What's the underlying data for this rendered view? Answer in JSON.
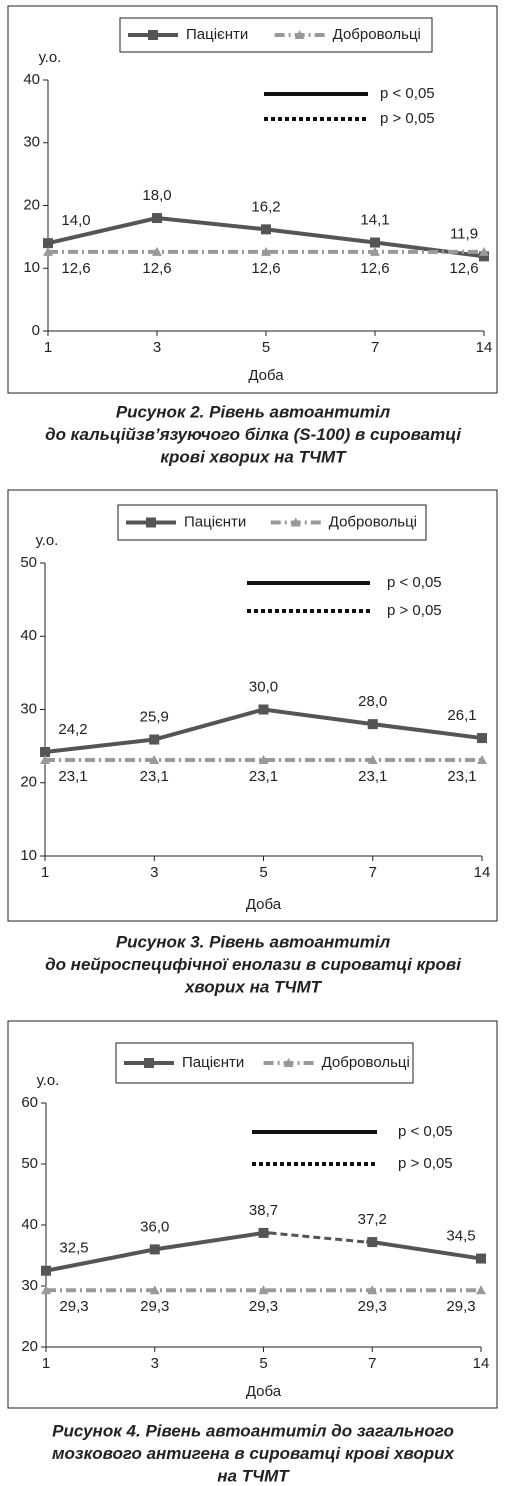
{
  "chart_data": [
    {
      "type": "line",
      "caption": [
        "Рисунок 2.  Рівень автоантитіл",
        "до кальційзв’язуючого білка (S-100) в сироватці",
        "крові хворих на ТЧМТ"
      ],
      "ylabel": "у.о.",
      "xlabel": "Доба",
      "categories": [
        "1",
        "3",
        "5",
        "7",
        "14"
      ],
      "series": [
        {
          "name": "Пацієнти",
          "color": "#555555",
          "values": [
            14.0,
            18.0,
            16.2,
            14.1,
            11.9
          ],
          "value_labels": [
            "14,0",
            "18,0",
            "16,2",
            "14,1",
            "11,9"
          ]
        },
        {
          "name": "Добровольці",
          "color": "#999999",
          "values": [
            12.6,
            12.6,
            12.6,
            12.6,
            12.6
          ],
          "value_labels": [
            "12,6",
            "12,6",
            "12,6",
            "12,6",
            "12,6"
          ]
        }
      ],
      "ylim": [
        0,
        40
      ],
      "yticks": [
        0,
        10,
        20,
        30,
        40
      ],
      "annotations": [
        {
          "text": "p < 0,05",
          "style": "solid"
        },
        {
          "text": "p > 0,05",
          "style": "dotted"
        }
      ]
    },
    {
      "type": "line",
      "caption": [
        "Рисунок 3.  Рівень автоантитіл",
        "до нейроспецифічної енолази в сироватці крові",
        "хворих на ТЧМТ"
      ],
      "ylabel": "у.о.",
      "xlabel": "Доба",
      "categories": [
        "1",
        "3",
        "5",
        "7",
        "14"
      ],
      "series": [
        {
          "name": "Пацієнти",
          "color": "#555555",
          "values": [
            24.2,
            25.9,
            30.0,
            28.0,
            26.1
          ],
          "value_labels": [
            "24,2",
            "25,9",
            "30,0",
            "28,0",
            "26,1"
          ]
        },
        {
          "name": "Добровольці",
          "color": "#999999",
          "values": [
            23.1,
            23.1,
            23.1,
            23.1,
            23.1
          ],
          "value_labels": [
            "23,1",
            "23,1",
            "23,1",
            "23,1",
            "23,1"
          ]
        }
      ],
      "ylim": [
        10,
        50
      ],
      "yticks": [
        10,
        20,
        30,
        40,
        50
      ],
      "annotations": [
        {
          "text": "p < 0,05",
          "style": "solid"
        },
        {
          "text": "p > 0,05",
          "style": "dotted"
        }
      ]
    },
    {
      "type": "line",
      "caption": [
        "Рисунок 4.  Рівень автоантитіл до загального",
        "мозкового антигена в сироватці крові хворих",
        "на ТЧМТ"
      ],
      "ylabel": "у.о.",
      "xlabel": "Доба",
      "categories": [
        "1",
        "3",
        "5",
        "7",
        "14"
      ],
      "series": [
        {
          "name": "Пацієнти",
          "color": "#555555",
          "values": [
            32.5,
            36.0,
            38.7,
            37.2,
            34.5
          ],
          "value_labels": [
            "32,5",
            "36,0",
            "38,7",
            "37,2",
            "34,5"
          ],
          "segment_styles": [
            "solid",
            "solid",
            "dotted",
            "solid"
          ]
        },
        {
          "name": "Добровольці",
          "color": "#999999",
          "values": [
            29.3,
            29.3,
            29.3,
            29.3,
            29.3
          ],
          "value_labels": [
            "29,3",
            "29,3",
            "29,3",
            "29,3",
            "29,3"
          ]
        }
      ],
      "ylim": [
        20,
        60
      ],
      "yticks": [
        20,
        30,
        40,
        50,
        60
      ],
      "annotations": [
        {
          "text": "p < 0,05",
          "style": "solid"
        },
        {
          "text": "p > 0,05",
          "style": "dotted"
        }
      ]
    }
  ]
}
